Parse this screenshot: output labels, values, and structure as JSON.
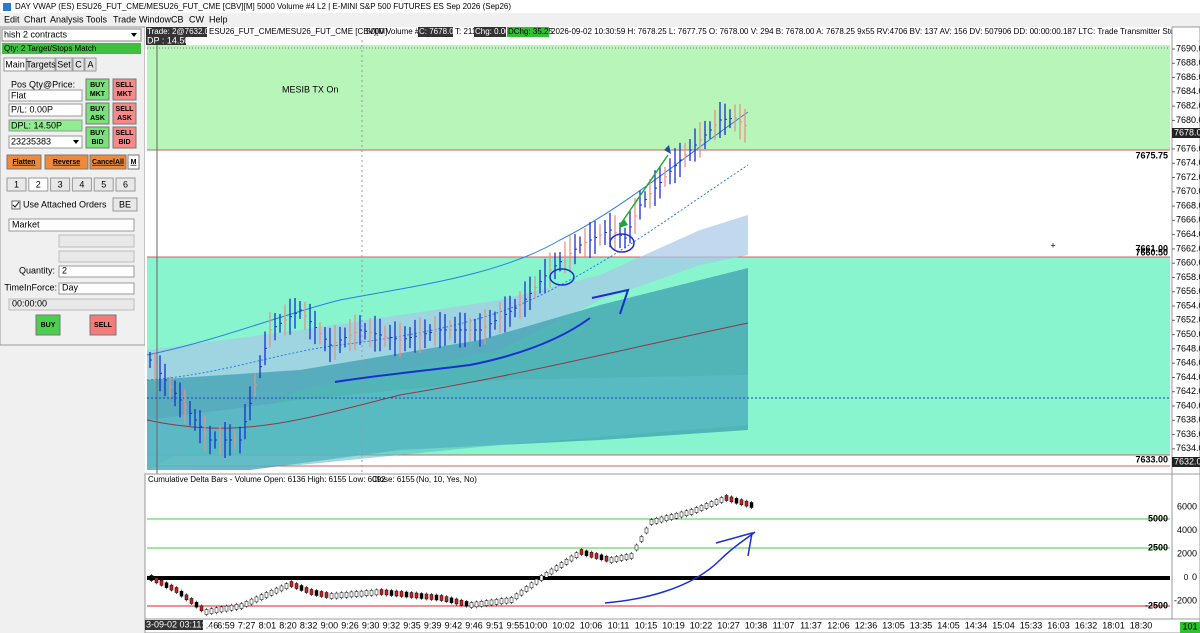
{
  "window": {
    "title": "DAY VWAP (ES) ESU26_FUT_CME/MESU26_FUT_CME [CBV][M]  5000 Volume #4 L2 | E-MINI S&P 500 FUTURES ES Sep 2026 (Sep26)",
    "menu": [
      "Edit",
      "Chart",
      "Analysis",
      "Tools",
      "Trade",
      "Window",
      "CB",
      "CW",
      "Help"
    ]
  },
  "order_panel": {
    "account": "hish 2 contracts",
    "status": "Qty: 2 Target/Stops Match",
    "tabs": [
      "Main",
      "Targets",
      "Set",
      "C",
      "A"
    ],
    "pos_label": "Pos Qty@Price:",
    "pos_value": "Flat",
    "pl": "P/L: 0.00P",
    "dpl": "DPL: 14.50P",
    "order_id": "23235383",
    "buy_mkt": [
      "BUY",
      "MKT"
    ],
    "sell_mkt": [
      "SELL",
      "MKT"
    ],
    "buy_ask": [
      "BUY",
      "ASK"
    ],
    "sell_ask": [
      "SELL",
      "ASK"
    ],
    "buy_bid": [
      "BUY",
      "BID"
    ],
    "sell_bid": [
      "SELL",
      "BID"
    ],
    "actions": [
      "Flatten",
      "Reverse",
      "CancelAll",
      "M"
    ],
    "qty_buttons": [
      "1",
      "2",
      "3",
      "4",
      "5",
      "6"
    ],
    "attached_orders": "Use Attached Orders",
    "be": "BE",
    "order_type": "Market",
    "quantity_label": "Quantity:",
    "quantity": "2",
    "tif_label": "TimeInForce:",
    "tif": "Day",
    "time": "00:00:00",
    "buy": "BUY",
    "sell": "SELL"
  },
  "chart": {
    "header": {
      "trade": "Trade: 2@7632.00",
      "symbol": "ESU26_FUT_CME/MESU26_FUT_CME [CBV][M]",
      "bars": "5000 Volume #4",
      "close": "C: 7678.00",
      "ticks": "T: 211",
      "chg": "Chg: 0.00",
      "dchg": "DChg: 35.25",
      "details": "2026-09-02 10:30:59 H: 7678.25 L: 7677.75 O: 7678.00 V: 294 B: 7678.00 A: 7678.25 9x55 RV:4706 BV: 137 AV: 156 DV: 507906 DD: 00:00:00.187 LTC: Trade Transmitter Study  -- V2.2.14 --  (Chart C",
      "dp": "DP : 14.50P"
    },
    "annotation": "MESIB TX On",
    "price_axis": [
      "7690.00",
      "7688.00",
      "7686.00",
      "7684.00",
      "7682.00",
      "7680.00",
      "7678.00",
      "7676.00",
      "7674.00",
      "7672.00",
      "7670.00",
      "7668.00",
      "7666.00",
      "7664.00",
      "7662.00",
      "7660.00",
      "7658.00",
      "7656.00",
      "7654.00",
      "7652.00",
      "7650.00",
      "7648.00",
      "7646.00",
      "7644.00",
      "7642.00",
      "7640.00",
      "7638.00",
      "7636.00",
      "7634.00"
    ],
    "last_price": "7678.00",
    "trade_price": "7632.00",
    "levels": [
      "7675.75",
      "7661.00",
      "7660.50",
      "7633.00"
    ],
    "date_box": "3-09-02  03:11:32",
    "time_axis": [
      ":46",
      "6:59",
      "7:27",
      "8:01",
      "8:20",
      "8:32",
      "9:00",
      "9:26",
      "9:30",
      "9:32",
      "9:35",
      "9:39",
      "9:42",
      "9:46",
      "9:51",
      "9:55",
      "10:00",
      "10:02",
      "10:06",
      "10:11",
      "10:15",
      "10:19",
      "10:22",
      "10:27",
      "10:38",
      "11:07",
      "11:37",
      "12:06",
      "12:36",
      "13:05",
      "13:35",
      "14:05",
      "14:34",
      "15:04",
      "15:33",
      "16:03",
      "16:32",
      "18:01",
      "18:30"
    ],
    "delta": {
      "title": "Cumulative Delta Bars - Volume  Open: 6136  High: 6155  Low: 6092",
      "close": "Close: 6155",
      "params": "(No, 10, Yes, No)",
      "axis": [
        "6000",
        "4000",
        "2000",
        "0",
        "-2000"
      ],
      "levels": [
        "5000",
        "2500",
        "0",
        "-2500"
      ]
    },
    "corner": "101"
  }
}
